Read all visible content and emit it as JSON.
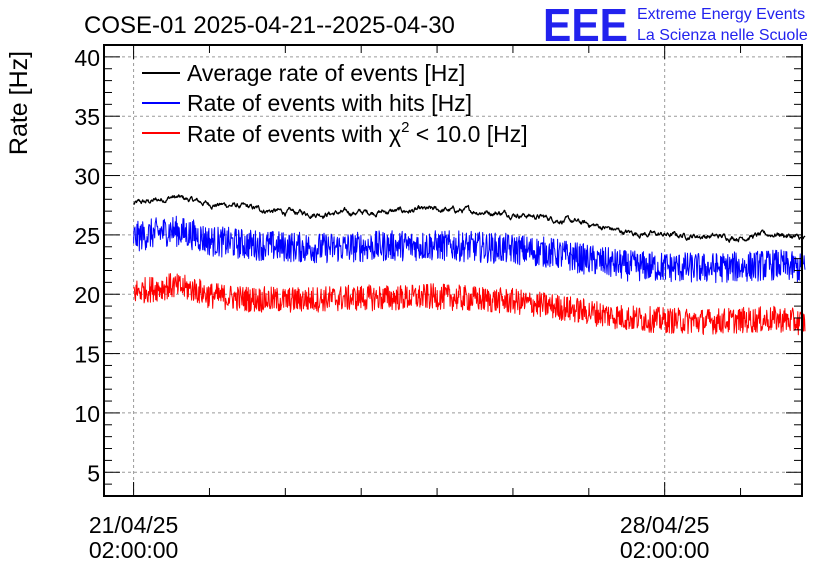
{
  "chart_data": {
    "type": "line",
    "title": "COSE-01 2025-04-21--2025-04-30",
    "ylabel": "Rate [Hz]",
    "xlabel": "",
    "ylim": [
      3,
      41
    ],
    "yticks": [
      5,
      10,
      15,
      20,
      25,
      30,
      35,
      40
    ],
    "xlim_days": [
      -0.39,
      8.81
    ],
    "xticks": [
      {
        "day": 0,
        "date": "21/04/25",
        "time": "02:00:00"
      },
      {
        "day": 7,
        "date": "28/04/25",
        "time": "02:00:00"
      }
    ],
    "grid": true,
    "legend_position": "top-left",
    "series": [
      {
        "name": "Average rate of events [Hz]",
        "color": "#000000",
        "noise": 0.15,
        "points": [
          [
            0,
            27.6
          ],
          [
            0.3,
            27.9
          ],
          [
            0.5,
            28.2
          ],
          [
            0.7,
            28.0
          ],
          [
            1.0,
            27.6
          ],
          [
            1.3,
            27.5
          ],
          [
            1.6,
            27.2
          ],
          [
            2.0,
            26.9
          ],
          [
            2.5,
            26.8
          ],
          [
            3.0,
            26.9
          ],
          [
            3.5,
            27.0
          ],
          [
            4.0,
            27.1
          ],
          [
            4.5,
            27.0
          ],
          [
            5.0,
            26.8
          ],
          [
            5.5,
            26.4
          ],
          [
            6.0,
            25.9
          ],
          [
            6.5,
            25.2
          ],
          [
            7.0,
            25.0
          ],
          [
            7.5,
            24.9
          ],
          [
            8.0,
            24.8
          ],
          [
            8.5,
            25.1
          ],
          [
            8.85,
            24.6
          ]
        ]
      },
      {
        "name": "Rate of events with hits [Hz]",
        "color": "#0000ff",
        "noise": 1.3,
        "points": [
          [
            0,
            24.8
          ],
          [
            0.5,
            25.4
          ],
          [
            0.8,
            25.0
          ],
          [
            1.0,
            24.5
          ],
          [
            1.5,
            24.2
          ],
          [
            2.0,
            24.0
          ],
          [
            2.5,
            23.9
          ],
          [
            3.0,
            24.0
          ],
          [
            3.5,
            24.1
          ],
          [
            4.0,
            24.1
          ],
          [
            4.5,
            24.0
          ],
          [
            5.0,
            23.8
          ],
          [
            5.5,
            23.5
          ],
          [
            6.0,
            22.9
          ],
          [
            6.5,
            22.4
          ],
          [
            7.0,
            22.3
          ],
          [
            7.5,
            22.2
          ],
          [
            8.0,
            22.3
          ],
          [
            8.5,
            22.5
          ],
          [
            8.85,
            22.1
          ]
        ]
      },
      {
        "name": "Rate of events with χ² < 10.0 [Hz]",
        "color": "#ff0000",
        "noise": 1.1,
        "points": [
          [
            0,
            20.2
          ],
          [
            0.5,
            20.7
          ],
          [
            0.8,
            20.4
          ],
          [
            1.0,
            19.9
          ],
          [
            1.5,
            19.6
          ],
          [
            2.0,
            19.5
          ],
          [
            2.5,
            19.6
          ],
          [
            3.0,
            19.7
          ],
          [
            3.5,
            19.7
          ],
          [
            4.0,
            19.8
          ],
          [
            4.5,
            19.6
          ],
          [
            5.0,
            19.4
          ],
          [
            5.5,
            19.0
          ],
          [
            6.0,
            18.5
          ],
          [
            6.5,
            18.0
          ],
          [
            7.0,
            17.8
          ],
          [
            7.5,
            17.7
          ],
          [
            8.0,
            17.8
          ],
          [
            8.5,
            17.9
          ],
          [
            8.85,
            17.6
          ]
        ]
      }
    ]
  },
  "legend": {
    "avg_label": "Average rate of events [Hz]",
    "hits_label": "Rate of events with hits [Hz]",
    "chi2_label_prefix": "Rate of events with",
    "chi2_symbol": "χ",
    "chi2_power": "2",
    "chi2_label_suffix": " < 10.0 [Hz]"
  },
  "logo": {
    "mark": "EEE",
    "line1": "Extreme Energy Events",
    "line2": "La Scienza nelle Scuole",
    "color": "#1a1aff"
  }
}
